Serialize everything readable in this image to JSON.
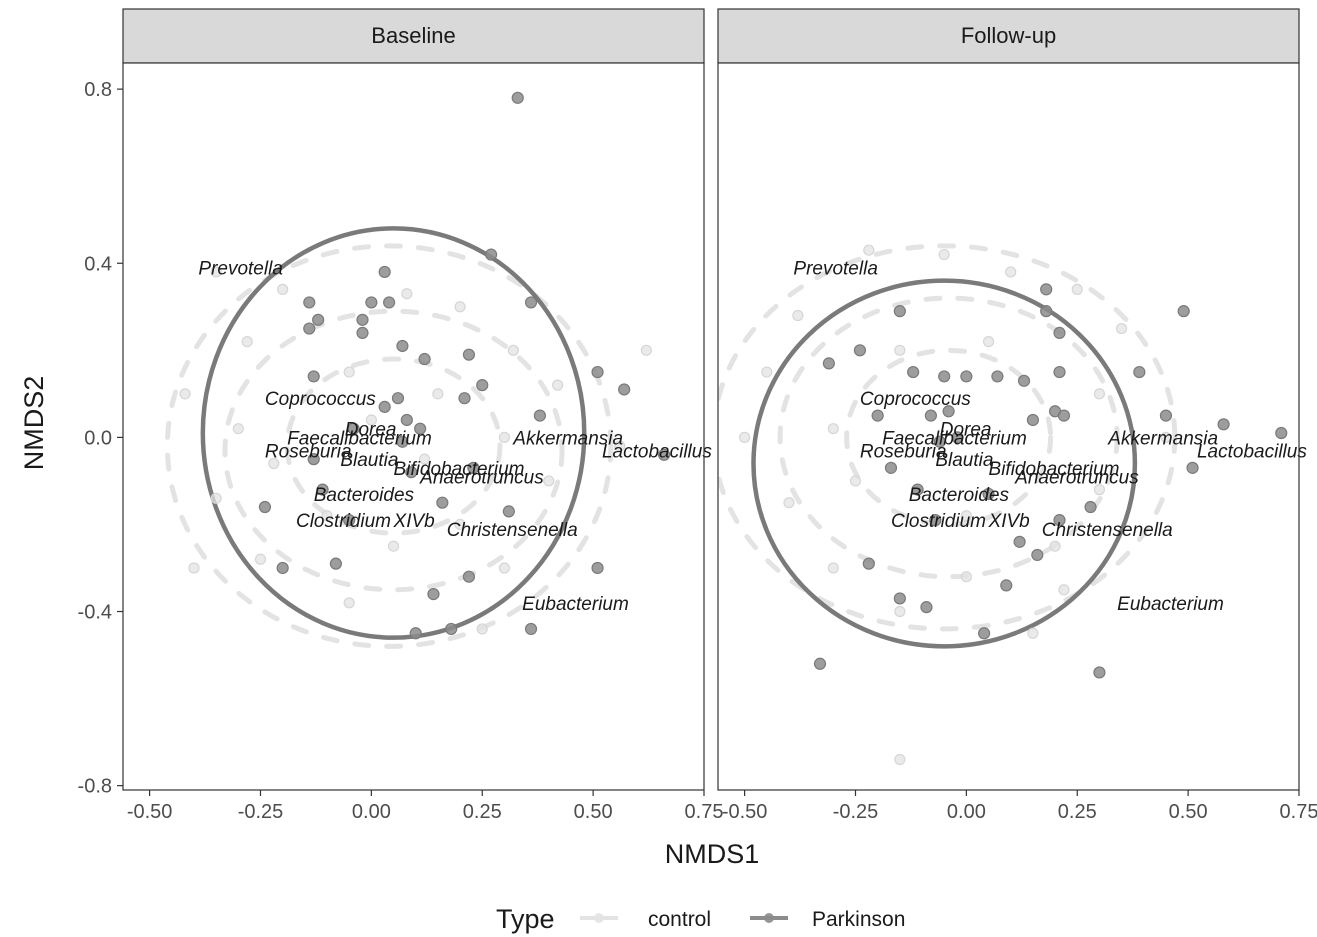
{
  "chart_data": {
    "type": "scatter",
    "xlabel": "NMDS1",
    "ylabel": "NMDS2",
    "xlim": [
      -0.56,
      0.75
    ],
    "ylim": [
      -0.81,
      0.86
    ],
    "x_ticks": [
      -0.5,
      -0.25,
      0.0,
      0.25,
      0.5,
      0.75
    ],
    "x_tick_labels": [
      "-0.50",
      "-0.25",
      "0.00",
      "0.25",
      "0.50",
      "0.75"
    ],
    "y_ticks": [
      -0.8,
      -0.4,
      0.0,
      0.4,
      0.8
    ],
    "y_tick_labels": [
      "-0.8",
      "-0.4",
      "0.0",
      "0.4",
      "0.8"
    ],
    "grid": false,
    "legend": {
      "title": "Type",
      "position": "bottom",
      "entries": [
        {
          "label": "control",
          "color": "#e3e3e3"
        },
        {
          "label": "Parkinson",
          "color": "#8c8c8c"
        }
      ]
    },
    "panels": [
      {
        "title": "Baseline",
        "ellipses": [
          {
            "group": "control",
            "center": [
              0.04,
              -0.02
            ],
            "rx": 0.5,
            "ry": 0.46,
            "style": "dashed"
          },
          {
            "group": "control",
            "center": [
              0.05,
              -0.03
            ],
            "rx": 0.38,
            "ry": 0.32,
            "style": "dashed"
          },
          {
            "group": "control",
            "center": [
              0.05,
              -0.02
            ],
            "rx": 0.24,
            "ry": 0.2,
            "style": "dashed"
          },
          {
            "group": "Parkinson",
            "center": [
              0.05,
              0.01
            ],
            "rx": 0.43,
            "ry": 0.47,
            "style": "solid"
          }
        ],
        "points": {
          "Parkinson": [
            [
              0.33,
              0.78
            ],
            [
              0.27,
              0.42
            ],
            [
              0.03,
              0.38
            ],
            [
              -0.14,
              0.31
            ],
            [
              0.0,
              0.31
            ],
            [
              0.04,
              0.31
            ],
            [
              -0.12,
              0.27
            ],
            [
              -0.14,
              0.25
            ],
            [
              -0.02,
              0.27
            ],
            [
              -0.02,
              0.24
            ],
            [
              0.36,
              0.31
            ],
            [
              0.07,
              0.21
            ],
            [
              0.12,
              0.18
            ],
            [
              0.22,
              0.19
            ],
            [
              -0.13,
              0.14
            ],
            [
              0.25,
              0.12
            ],
            [
              0.51,
              0.15
            ],
            [
              0.57,
              0.11
            ],
            [
              0.21,
              0.09
            ],
            [
              0.03,
              0.07
            ],
            [
              0.06,
              0.09
            ],
            [
              0.38,
              0.05
            ],
            [
              0.08,
              0.04
            ],
            [
              0.11,
              0.02
            ],
            [
              -0.04,
              0.02
            ],
            [
              0.07,
              -0.01
            ],
            [
              -0.13,
              -0.05
            ],
            [
              0.66,
              -0.04
            ],
            [
              0.23,
              -0.07
            ],
            [
              0.09,
              -0.08
            ],
            [
              -0.11,
              -0.12
            ],
            [
              0.16,
              -0.15
            ],
            [
              0.31,
              -0.17
            ],
            [
              -0.24,
              -0.16
            ],
            [
              -0.05,
              -0.19
            ],
            [
              -0.08,
              -0.29
            ],
            [
              -0.2,
              -0.3
            ],
            [
              0.22,
              -0.32
            ],
            [
              0.51,
              -0.3
            ],
            [
              0.14,
              -0.36
            ],
            [
              0.18,
              -0.44
            ],
            [
              0.1,
              -0.45
            ],
            [
              0.36,
              -0.44
            ]
          ],
          "control": [
            [
              -0.35,
              0.38
            ],
            [
              -0.2,
              0.34
            ],
            [
              0.08,
              0.33
            ],
            [
              0.2,
              0.3
            ],
            [
              -0.28,
              0.22
            ],
            [
              0.32,
              0.2
            ],
            [
              -0.42,
              0.1
            ],
            [
              -0.05,
              0.15
            ],
            [
              0.15,
              0.1
            ],
            [
              0.42,
              0.12
            ],
            [
              -0.3,
              0.02
            ],
            [
              0.0,
              0.04
            ],
            [
              0.3,
              0.0
            ],
            [
              0.56,
              -0.02
            ],
            [
              -0.22,
              -0.06
            ],
            [
              0.12,
              -0.05
            ],
            [
              0.4,
              -0.1
            ],
            [
              -0.35,
              -0.14
            ],
            [
              -0.1,
              -0.18
            ],
            [
              0.2,
              -0.2
            ],
            [
              -0.25,
              -0.28
            ],
            [
              0.05,
              -0.25
            ],
            [
              0.3,
              -0.3
            ],
            [
              -0.05,
              -0.38
            ],
            [
              0.25,
              -0.44
            ],
            [
              0.62,
              0.2
            ],
            [
              -0.4,
              -0.3
            ]
          ]
        },
        "vectors": [
          {
            "label": "Prevotella",
            "x": -0.39,
            "y": 0.39
          },
          {
            "label": "Coprococcus",
            "x": -0.24,
            "y": 0.09
          },
          {
            "label": "Dorea",
            "x": -0.06,
            "y": 0.02
          },
          {
            "label": "Faecalibacterium",
            "x": -0.19,
            "y": 0.0
          },
          {
            "label": "Roseburia",
            "x": -0.24,
            "y": -0.03
          },
          {
            "label": "Blautia",
            "x": -0.07,
            "y": -0.05
          },
          {
            "label": "Bifidobacterium",
            "x": 0.05,
            "y": -0.07
          },
          {
            "label": "Akkermansia",
            "x": 0.32,
            "y": 0.0
          },
          {
            "label": "Lactobacillus",
            "x": 0.52,
            "y": -0.03
          },
          {
            "label": "Anaerotruncus",
            "x": 0.11,
            "y": -0.09
          },
          {
            "label": "Bacteroides",
            "x": -0.13,
            "y": -0.13
          },
          {
            "label": "Clostridium",
            "x": -0.17,
            "y": -0.19
          },
          {
            "label": "XIVb",
            "x": 0.05,
            "y": -0.19
          },
          {
            "label": "Christensenella",
            "x": 0.17,
            "y": -0.21
          },
          {
            "label": "Eubacterium",
            "x": 0.34,
            "y": -0.38
          }
        ]
      },
      {
        "title": "Follow-up",
        "ellipses": [
          {
            "group": "control",
            "center": [
              -0.05,
              0.0
            ],
            "rx": 0.52,
            "ry": 0.44,
            "style": "dashed"
          },
          {
            "group": "control",
            "center": [
              -0.04,
              0.0
            ],
            "rx": 0.38,
            "ry": 0.32,
            "style": "dashed"
          },
          {
            "group": "control",
            "center": [
              -0.04,
              0.0
            ],
            "rx": 0.23,
            "ry": 0.2,
            "style": "dashed"
          },
          {
            "group": "Parkinson",
            "center": [
              -0.05,
              -0.06
            ],
            "rx": 0.43,
            "ry": 0.42,
            "style": "solid"
          }
        ],
        "points": {
          "Parkinson": [
            [
              0.18,
              0.34
            ],
            [
              0.49,
              0.29
            ],
            [
              -0.15,
              0.29
            ],
            [
              0.18,
              0.29
            ],
            [
              0.21,
              0.24
            ],
            [
              -0.24,
              0.2
            ],
            [
              -0.31,
              0.17
            ],
            [
              -0.12,
              0.15
            ],
            [
              -0.05,
              0.14
            ],
            [
              0.0,
              0.14
            ],
            [
              0.07,
              0.14
            ],
            [
              0.13,
              0.13
            ],
            [
              0.21,
              0.15
            ],
            [
              0.39,
              0.15
            ],
            [
              -0.2,
              0.05
            ],
            [
              -0.08,
              0.05
            ],
            [
              -0.04,
              0.06
            ],
            [
              0.15,
              0.04
            ],
            [
              0.2,
              0.06
            ],
            [
              0.22,
              0.05
            ],
            [
              0.45,
              0.05
            ],
            [
              0.58,
              0.03
            ],
            [
              0.71,
              0.01
            ],
            [
              -0.02,
              0.0
            ],
            [
              -0.06,
              -0.01
            ],
            [
              -0.17,
              -0.07
            ],
            [
              0.51,
              -0.07
            ],
            [
              0.05,
              -0.13
            ],
            [
              -0.11,
              -0.12
            ],
            [
              0.28,
              -0.16
            ],
            [
              0.21,
              -0.19
            ],
            [
              -0.07,
              -0.19
            ],
            [
              0.12,
              -0.24
            ],
            [
              0.16,
              -0.27
            ],
            [
              -0.22,
              -0.29
            ],
            [
              0.09,
              -0.34
            ],
            [
              -0.15,
              -0.37
            ],
            [
              -0.09,
              -0.39
            ],
            [
              0.04,
              -0.45
            ],
            [
              -0.33,
              -0.52
            ],
            [
              0.3,
              -0.54
            ]
          ],
          "control": [
            [
              -0.22,
              0.43
            ],
            [
              -0.05,
              0.42
            ],
            [
              0.1,
              0.38
            ],
            [
              0.25,
              0.34
            ],
            [
              -0.38,
              0.28
            ],
            [
              0.35,
              0.25
            ],
            [
              -0.45,
              0.15
            ],
            [
              -0.15,
              0.2
            ],
            [
              0.05,
              0.22
            ],
            [
              0.3,
              0.1
            ],
            [
              -0.5,
              0.0
            ],
            [
              -0.3,
              0.02
            ],
            [
              0.45,
              0.0
            ],
            [
              -0.25,
              -0.1
            ],
            [
              0.3,
              -0.12
            ],
            [
              -0.4,
              -0.15
            ],
            [
              0.0,
              -0.18
            ],
            [
              0.2,
              -0.25
            ],
            [
              -0.3,
              -0.3
            ],
            [
              0.0,
              -0.32
            ],
            [
              0.15,
              -0.45
            ],
            [
              -0.15,
              -0.4
            ],
            [
              -0.15,
              -0.74
            ],
            [
              0.22,
              -0.35
            ]
          ]
        },
        "vectors": [
          {
            "label": "Prevotella",
            "x": -0.39,
            "y": 0.39
          },
          {
            "label": "Coprococcus",
            "x": -0.24,
            "y": 0.09
          },
          {
            "label": "Dorea",
            "x": -0.06,
            "y": 0.02
          },
          {
            "label": "Faecalibacterium",
            "x": -0.19,
            "y": 0.0
          },
          {
            "label": "Roseburia",
            "x": -0.24,
            "y": -0.03
          },
          {
            "label": "Blautia",
            "x": -0.07,
            "y": -0.05
          },
          {
            "label": "Bifidobacterium",
            "x": 0.05,
            "y": -0.07
          },
          {
            "label": "Akkermansia",
            "x": 0.32,
            "y": 0.0
          },
          {
            "label": "Lactobacillus",
            "x": 0.52,
            "y": -0.03
          },
          {
            "label": "Anaerotruncus",
            "x": 0.11,
            "y": -0.09
          },
          {
            "label": "Bacteroides",
            "x": -0.13,
            "y": -0.13
          },
          {
            "label": "Clostridium",
            "x": -0.17,
            "y": -0.19
          },
          {
            "label": "XIVb",
            "x": 0.05,
            "y": -0.19
          },
          {
            "label": "Christensenella",
            "x": 0.17,
            "y": -0.21
          },
          {
            "label": "Eubacterium",
            "x": 0.34,
            "y": -0.38
          }
        ]
      }
    ]
  }
}
